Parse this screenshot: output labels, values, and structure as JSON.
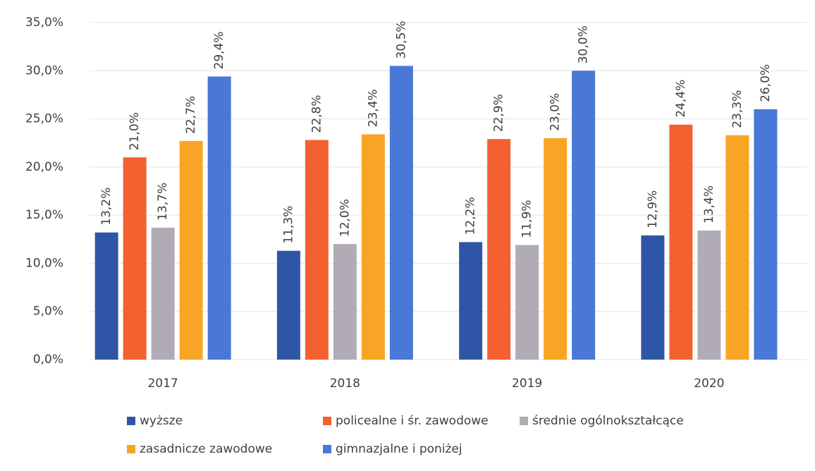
{
  "chart_data": {
    "type": "bar",
    "categories": [
      "2017",
      "2018",
      "2019",
      "2020"
    ],
    "series": [
      {
        "name": "wyższe",
        "color": "#2f56a6",
        "values": [
          13.2,
          11.3,
          12.2,
          12.9
        ],
        "value_labels": [
          "13,2%",
          "11,3%",
          "12,2%",
          "12,9%"
        ]
      },
      {
        "name": "policealne i śr. zawodowe",
        "color": "#f2612f",
        "values": [
          21.0,
          22.8,
          22.9,
          24.4
        ],
        "value_labels": [
          "21,0%",
          "22,8%",
          "22,9%",
          "24,4%"
        ]
      },
      {
        "name": "średnie ogólnokształcące",
        "color": "#b1abb6",
        "values": [
          13.7,
          12.0,
          11.9,
          13.4
        ],
        "value_labels": [
          "13,7%",
          "12,0%",
          "11,9%",
          "13,4%"
        ]
      },
      {
        "name": "zasadnicze zawodowe",
        "color": "#f8a526",
        "values": [
          22.7,
          23.4,
          23.0,
          23.3
        ],
        "value_labels": [
          "22,7%",
          "23,4%",
          "23,0%",
          "23,3%"
        ]
      },
      {
        "name": "gimnazjalne i poniżej",
        "color": "#4a78d6",
        "values": [
          29.4,
          30.5,
          30.0,
          26.0
        ],
        "value_labels": [
          "29,4%",
          "30,5%",
          "30,0%",
          "26,0%"
        ]
      }
    ],
    "ylim": [
      0,
      35
    ],
    "yticks": [
      {
        "value": 0,
        "label": "0,0%"
      },
      {
        "value": 5,
        "label": "5,0%"
      },
      {
        "value": 10,
        "label": "10,0%"
      },
      {
        "value": 15,
        "label": "15,0%"
      },
      {
        "value": 20,
        "label": "20,0%"
      },
      {
        "value": 25,
        "label": "25,0%"
      },
      {
        "value": 30,
        "label": "30,0%"
      },
      {
        "value": 35,
        "label": "35,0%"
      }
    ],
    "grid": true,
    "legend": "bottom"
  }
}
